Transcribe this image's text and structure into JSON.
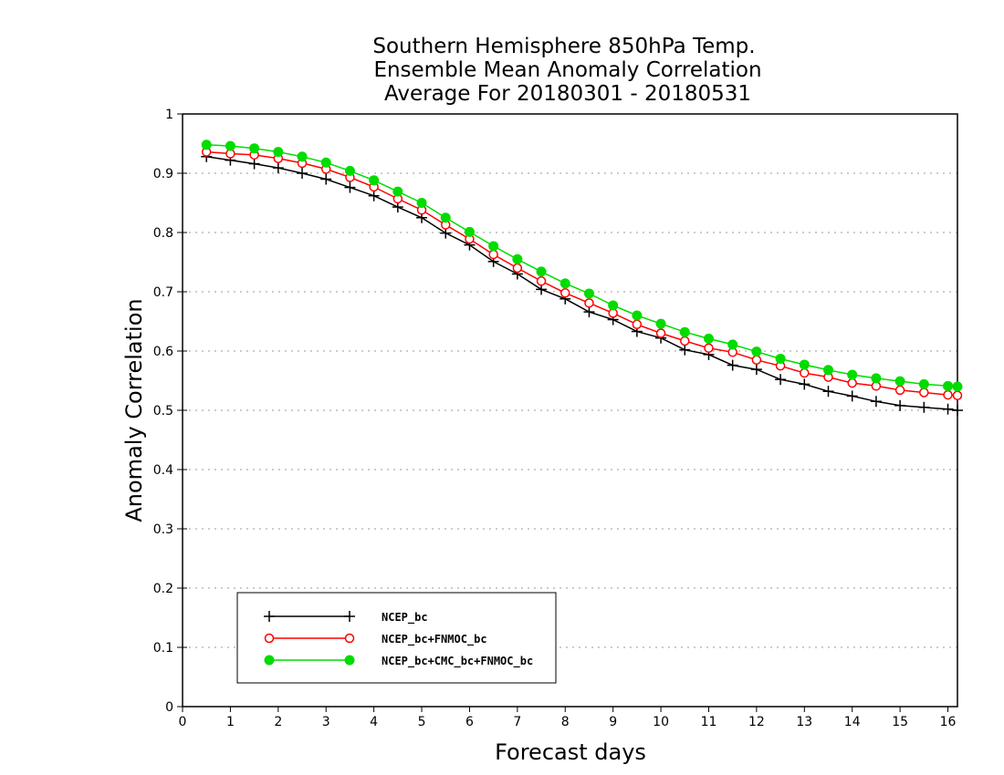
{
  "chart_data": {
    "type": "line",
    "title": [
      "Southern Hemisphere 850hPa Temp.",
      "Ensemble Mean Anomaly Correlation",
      "Average For 20180301 - 20180531"
    ],
    "xlabel": "Forecast days",
    "ylabel": "Anomaly Correlation",
    "xlim": [
      0,
      16.2
    ],
    "ylim": [
      0,
      1
    ],
    "xticks": [
      0,
      1,
      2,
      3,
      4,
      5,
      6,
      7,
      8,
      9,
      10,
      11,
      12,
      13,
      14,
      15,
      16
    ],
    "yticks": [
      0,
      0.1,
      0.2,
      0.3,
      0.4,
      0.5,
      0.6,
      0.7,
      0.8,
      0.9,
      1
    ],
    "grid": "horizontal dotted",
    "legend_position": "lower-left",
    "x": [
      0.5,
      1,
      1.5,
      2,
      2.5,
      3,
      3.5,
      4,
      4.5,
      5,
      5.5,
      6,
      6.5,
      7,
      7.5,
      8,
      8.5,
      9,
      9.5,
      10,
      10.5,
      11,
      11.5,
      12,
      12.5,
      13,
      13.5,
      14,
      14.5,
      15,
      15.5,
      16,
      16.2
    ],
    "series": [
      {
        "name": "NCEP_bc",
        "color": "#000000",
        "marker": "plus",
        "values": [
          0.928,
          0.922,
          0.916,
          0.909,
          0.9,
          0.89,
          0.876,
          0.862,
          0.843,
          0.825,
          0.799,
          0.779,
          0.751,
          0.73,
          0.704,
          0.688,
          0.666,
          0.653,
          0.633,
          0.622,
          0.602,
          0.594,
          0.576,
          0.569,
          0.552,
          0.544,
          0.532,
          0.524,
          0.515,
          0.508,
          0.505,
          0.502,
          0.5
        ]
      },
      {
        "name": "NCEP_bc+FNMOC_bc",
        "color": "#ff0000",
        "marker": "open-circle",
        "values": [
          0.936,
          0.933,
          0.931,
          0.925,
          0.917,
          0.907,
          0.893,
          0.877,
          0.857,
          0.838,
          0.813,
          0.789,
          0.763,
          0.74,
          0.718,
          0.698,
          0.681,
          0.664,
          0.645,
          0.63,
          0.617,
          0.605,
          0.598,
          0.585,
          0.575,
          0.563,
          0.556,
          0.546,
          0.541,
          0.534,
          0.53,
          0.526,
          0.525
        ]
      },
      {
        "name": "NCEP_bc+CMC_bc+FNMOC_bc",
        "color": "#00dc00",
        "marker": "filled-circle",
        "values": [
          0.948,
          0.946,
          0.942,
          0.936,
          0.928,
          0.918,
          0.904,
          0.888,
          0.869,
          0.85,
          0.825,
          0.801,
          0.777,
          0.755,
          0.734,
          0.714,
          0.697,
          0.677,
          0.66,
          0.646,
          0.632,
          0.621,
          0.611,
          0.599,
          0.587,
          0.577,
          0.568,
          0.56,
          0.554,
          0.549,
          0.544,
          0.541,
          0.54
        ]
      }
    ]
  }
}
